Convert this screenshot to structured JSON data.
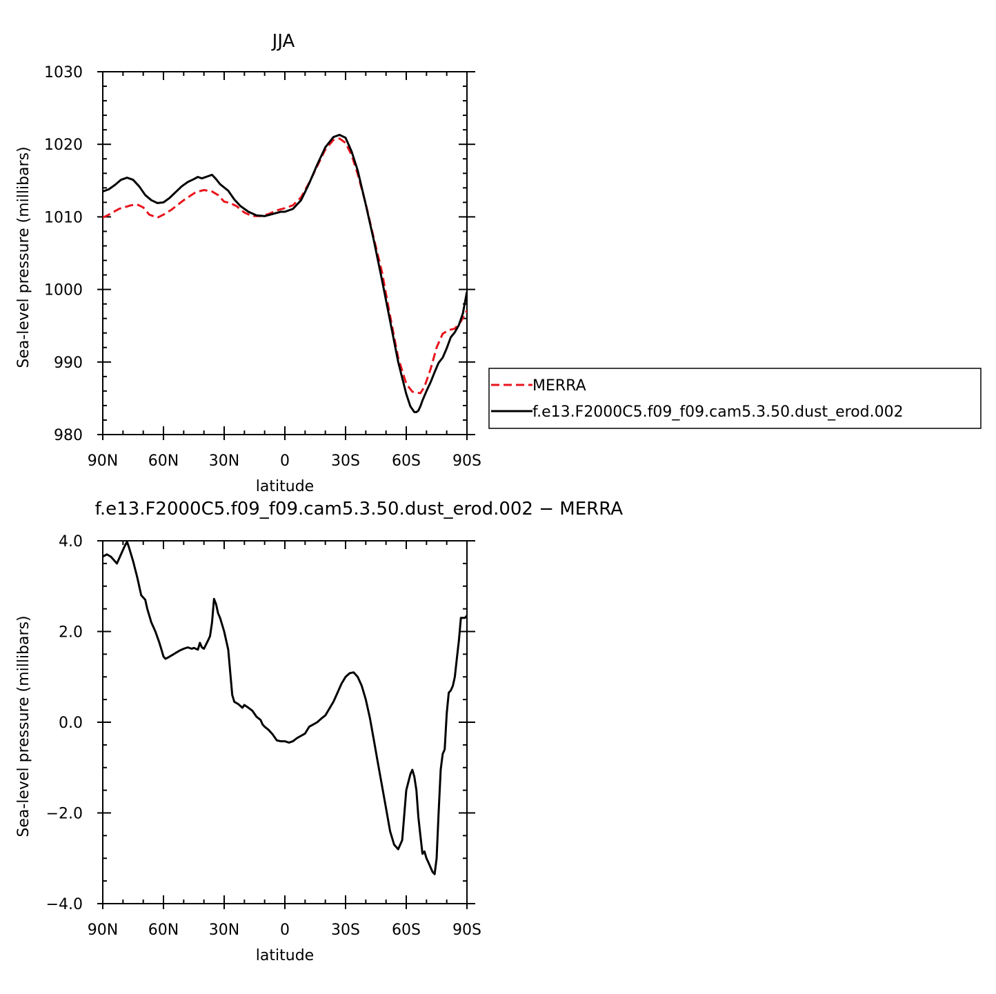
{
  "chart_data": [
    {
      "type": "line",
      "title": "JJA",
      "xlabel": "latitude",
      "ylabel": "Sea-level pressure (millibars)",
      "xlim": [
        90,
        -90
      ],
      "ylim": [
        980,
        1030
      ],
      "x_ticks": [
        {
          "v": 90,
          "label": "90N"
        },
        {
          "v": 60,
          "label": "60N"
        },
        {
          "v": 30,
          "label": "30N"
        },
        {
          "v": 0,
          "label": "0"
        },
        {
          "v": -30,
          "label": "30S"
        },
        {
          "v": -60,
          "label": "60S"
        },
        {
          "v": -90,
          "label": "90S"
        }
      ],
      "y_ticks": [
        {
          "v": 1030,
          "label": "1030"
        },
        {
          "v": 1020,
          "label": "1020"
        },
        {
          "v": 1010,
          "label": "1010"
        },
        {
          "v": 1000,
          "label": "1000"
        },
        {
          "v": 990,
          "label": "990"
        },
        {
          "v": 980,
          "label": "980"
        }
      ],
      "legend": {
        "placement": "right"
      },
      "series": [
        {
          "name": "MERRA",
          "color": "#e8141c",
          "dash": true,
          "x": [
            90,
            87,
            82,
            76,
            73,
            70,
            67,
            63,
            60,
            56,
            50,
            44,
            40,
            36,
            33,
            30,
            27,
            24,
            20,
            16,
            12,
            8,
            4,
            0,
            -4,
            -8,
            -12,
            -16,
            -20,
            -24,
            -27,
            -30,
            -33,
            -36,
            -40,
            -44,
            -48,
            -52,
            -56,
            -60,
            -63,
            -65,
            -67,
            -69,
            -72,
            -75,
            -78,
            -81,
            -84,
            -87,
            -90
          ],
          "y": [
            1009.9,
            1010.3,
            1011.1,
            1011.6,
            1011.7,
            1011.3,
            1010.3,
            1009.9,
            1010.3,
            1011.0,
            1012.3,
            1013.4,
            1013.7,
            1013.5,
            1013.0,
            1012.1,
            1011.9,
            1011.5,
            1010.6,
            1010.1,
            1010.1,
            1010.4,
            1010.9,
            1011.2,
            1011.6,
            1012.7,
            1014.7,
            1017.0,
            1019.3,
            1020.6,
            1020.8,
            1020.2,
            1018.5,
            1015.9,
            1011.8,
            1007.0,
            1002.4,
            996.4,
            990.6,
            987.0,
            985.9,
            985.8,
            985.7,
            986.6,
            989.0,
            992.0,
            993.9,
            994.4,
            994.6,
            995.6,
            997.1
          ]
        },
        {
          "name": "f.e13.F2000C5.f09_f09.cam5.3.50.dust_erod.002",
          "color": "#000000",
          "dash": false,
          "x": [
            90,
            87,
            84,
            81,
            78,
            75,
            72,
            69,
            66,
            63,
            60,
            57,
            54,
            51,
            48,
            45,
            43,
            41,
            38,
            36,
            34,
            32,
            28,
            25,
            22,
            18,
            14,
            10,
            6,
            2,
            0,
            -4,
            -8,
            -12,
            -16,
            -20,
            -24,
            -27,
            -30,
            -33,
            -36,
            -40,
            -44,
            -48,
            -52,
            -56,
            -60,
            -62,
            -64,
            -65,
            -66,
            -67,
            -68,
            -70,
            -72,
            -74,
            -76,
            -78,
            -80,
            -82,
            -84,
            -86,
            -88,
            -90
          ],
          "y": [
            1013.5,
            1013.8,
            1014.4,
            1015.1,
            1015.4,
            1015.1,
            1014.2,
            1013.0,
            1012.3,
            1011.9,
            1012.0,
            1012.6,
            1013.4,
            1014.2,
            1014.8,
            1015.2,
            1015.5,
            1015.3,
            1015.6,
            1015.8,
            1015.2,
            1014.5,
            1013.6,
            1012.4,
            1011.5,
            1010.7,
            1010.2,
            1010.1,
            1010.4,
            1010.7,
            1010.7,
            1011.1,
            1012.3,
            1014.6,
            1017.2,
            1019.6,
            1021.0,
            1021.3,
            1020.9,
            1019.0,
            1016.4,
            1011.7,
            1006.7,
            1001.3,
            995.7,
            990.0,
            985.6,
            983.9,
            983.1,
            983.1,
            983.3,
            983.9,
            984.7,
            986.0,
            987.2,
            988.6,
            989.9,
            990.6,
            991.9,
            993.4,
            994.1,
            995.1,
            996.7,
            999.7
          ]
        }
      ]
    },
    {
      "type": "line",
      "title": "f.e13.F2000C5.f09_f09.cam5.3.50.dust_erod.002 − MERRA",
      "xlabel": "latitude",
      "ylabel": "Sea-level pressure (millibars)",
      "xlim": [
        90,
        -90
      ],
      "ylim": [
        -4,
        4
      ],
      "x_ticks": [
        {
          "v": 90,
          "label": "90N"
        },
        {
          "v": 60,
          "label": "60N"
        },
        {
          "v": 30,
          "label": "30N"
        },
        {
          "v": 0,
          "label": "0"
        },
        {
          "v": -30,
          "label": "30S"
        },
        {
          "v": -60,
          "label": "60S"
        },
        {
          "v": -90,
          "label": "90S"
        }
      ],
      "y_ticks": [
        {
          "v": 4,
          "label": "4.0"
        },
        {
          "v": 2,
          "label": "2.0"
        },
        {
          "v": 0,
          "label": "0.0"
        },
        {
          "v": -2,
          "label": "−2.0"
        },
        {
          "v": -4,
          "label": "−4.0"
        }
      ],
      "series": [
        {
          "color": "#000000",
          "dash": false,
          "x": [
            90,
            88,
            86,
            83,
            81,
            79,
            78,
            77,
            75,
            73,
            71,
            69,
            68,
            66,
            64,
            62,
            61,
            60,
            59,
            58,
            55,
            52,
            50,
            48,
            46,
            45,
            43,
            42,
            41,
            40,
            38,
            37,
            36,
            35,
            34,
            33,
            32,
            30,
            28,
            27,
            26,
            25,
            23,
            21,
            20,
            18,
            16,
            14,
            12,
            11,
            10,
            8,
            6,
            4,
            2,
            0,
            -2,
            -4,
            -6,
            -8,
            -10,
            -12,
            -14,
            -16,
            -18,
            -20,
            -22,
            -24,
            -26,
            -28,
            -30,
            -32,
            -34,
            -36,
            -38,
            -40,
            -42,
            -44,
            -46,
            -48,
            -50,
            -52,
            -54,
            -56,
            -58,
            -60,
            -62,
            -63,
            -64,
            -65,
            -66,
            -67,
            -68,
            -69,
            -70,
            -71,
            -72,
            -73,
            -74,
            -75,
            -76,
            -77,
            -78,
            -79,
            -80,
            -81,
            -82,
            -83,
            -84,
            -85,
            -86,
            -87,
            -88,
            -89,
            -90
          ],
          "y": [
            3.65,
            3.7,
            3.65,
            3.5,
            3.7,
            3.9,
            3.98,
            3.85,
            3.55,
            3.2,
            2.8,
            2.7,
            2.5,
            2.2,
            2.0,
            1.75,
            1.6,
            1.45,
            1.4,
            1.42,
            1.5,
            1.58,
            1.62,
            1.65,
            1.62,
            1.64,
            1.6,
            1.75,
            1.65,
            1.62,
            1.8,
            1.9,
            2.2,
            2.72,
            2.6,
            2.4,
            2.3,
            2.0,
            1.6,
            1.1,
            0.6,
            0.45,
            0.4,
            0.32,
            0.38,
            0.32,
            0.25,
            0.12,
            0.05,
            -0.05,
            -0.1,
            -0.17,
            -0.27,
            -0.4,
            -0.42,
            -0.42,
            -0.45,
            -0.42,
            -0.35,
            -0.3,
            -0.25,
            -0.1,
            -0.05,
            0.0,
            0.08,
            0.15,
            0.3,
            0.45,
            0.65,
            0.85,
            1.0,
            1.08,
            1.1,
            1.0,
            0.8,
            0.5,
            0.1,
            -0.4,
            -0.9,
            -1.4,
            -1.9,
            -2.4,
            -2.7,
            -2.8,
            -2.6,
            -1.5,
            -1.15,
            -1.05,
            -1.2,
            -1.5,
            -2.1,
            -2.5,
            -2.9,
            -2.85,
            -3.0,
            -3.1,
            -3.2,
            -3.3,
            -3.35,
            -3.0,
            -2.0,
            -1.05,
            -0.7,
            -0.6,
            0.2,
            0.65,
            0.7,
            0.8,
            1.0,
            1.4,
            1.8,
            2.3,
            2.3,
            2.3,
            2.35
          ]
        }
      ]
    }
  ]
}
